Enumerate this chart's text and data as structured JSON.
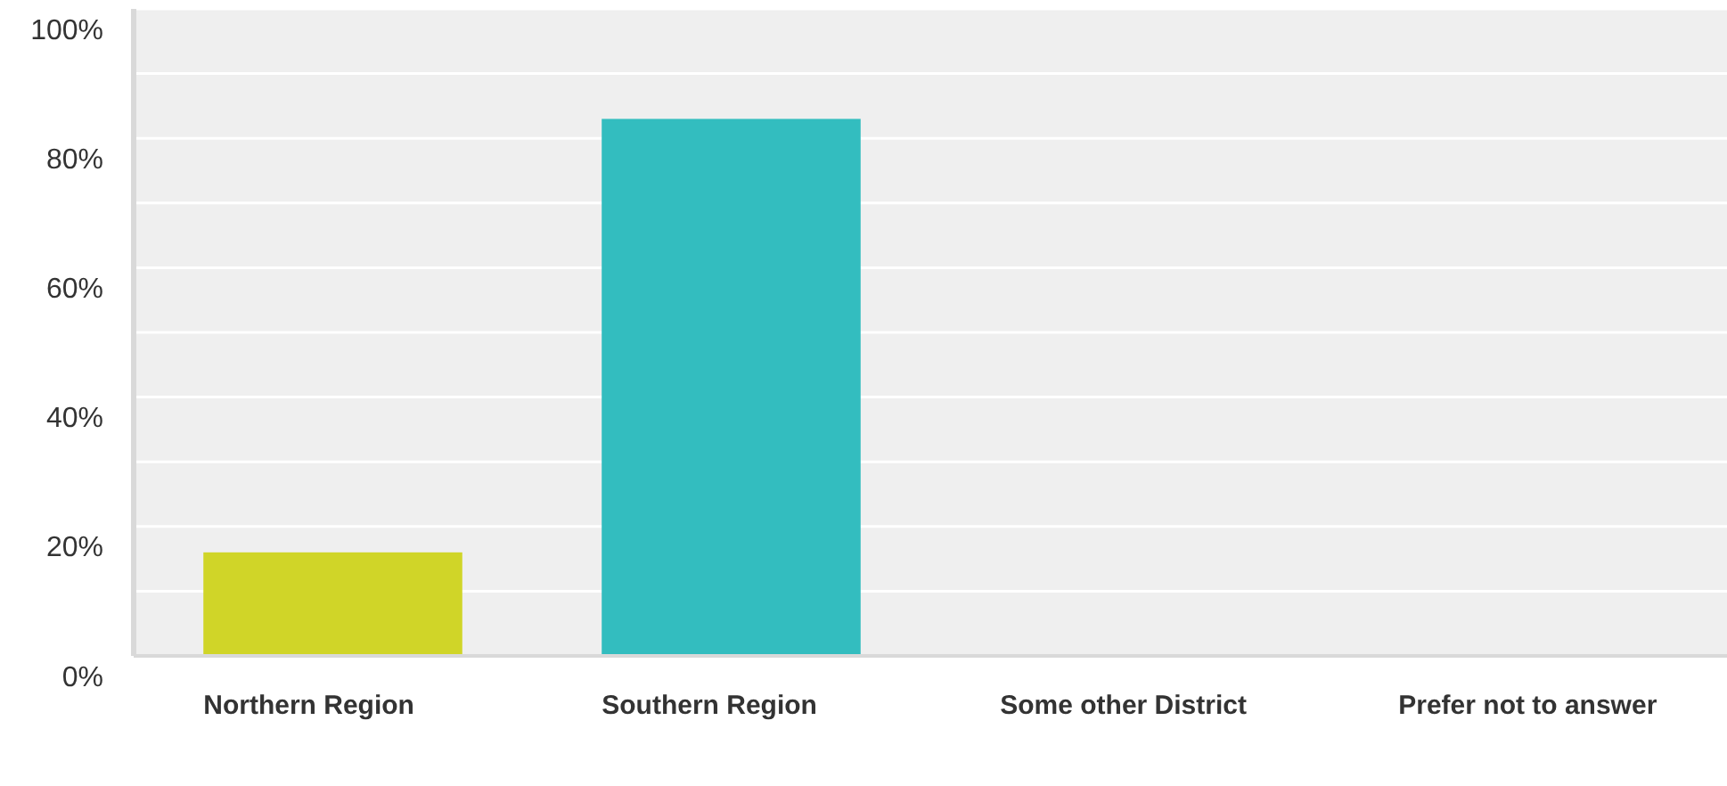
{
  "chart_data": {
    "type": "bar",
    "categories": [
      "Northern Region",
      "Southern Region",
      "Some other District",
      "Prefer not to answer"
    ],
    "values": [
      16,
      83,
      0,
      0
    ],
    "colors": [
      "#d0d528",
      "#33bdbf",
      "#6b4c9a",
      "#f79a3e"
    ],
    "ylim": [
      0,
      100
    ],
    "yticks": [
      {
        "value": 0,
        "label": "0%"
      },
      {
        "value": 10,
        "label": null
      },
      {
        "value": 20,
        "label": "20%"
      },
      {
        "value": 30,
        "label": null
      },
      {
        "value": 40,
        "label": "40%"
      },
      {
        "value": 50,
        "label": null
      },
      {
        "value": 60,
        "label": "60%"
      },
      {
        "value": 70,
        "label": null
      },
      {
        "value": 80,
        "label": "80%"
      },
      {
        "value": 90,
        "label": null
      },
      {
        "value": 100,
        "label": "100%"
      }
    ],
    "grid": "y"
  }
}
